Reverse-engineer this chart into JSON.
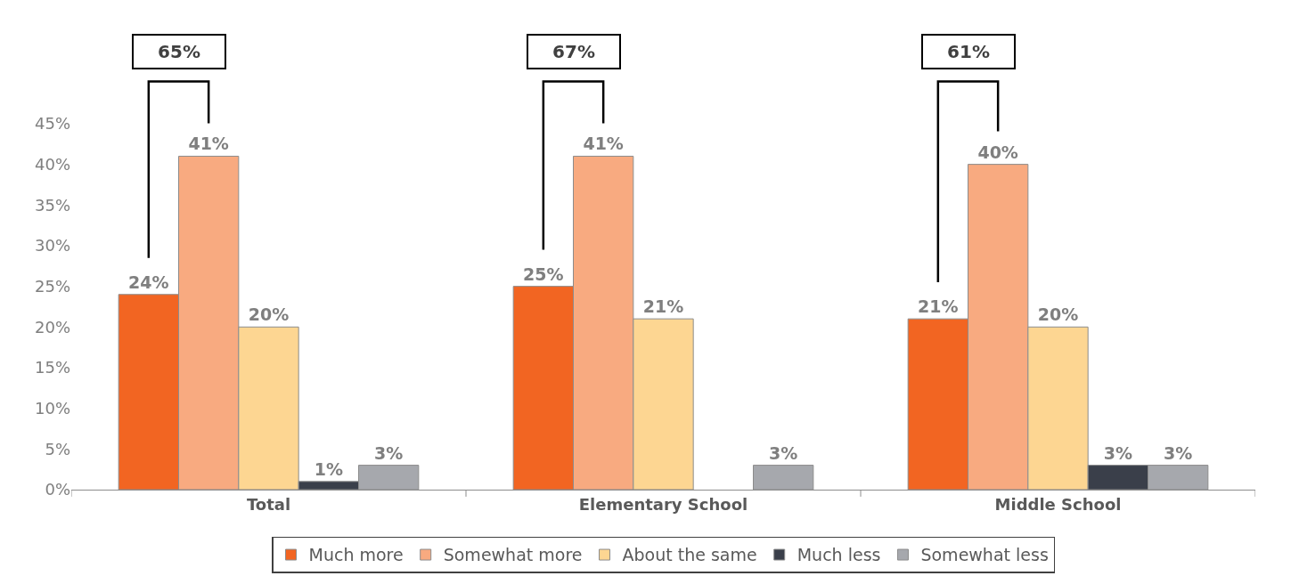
{
  "chart_data": {
    "type": "bar",
    "categories": [
      "Total",
      "Elementary School",
      "Middle School"
    ],
    "series": [
      {
        "name": "Much more",
        "color": "#f26522",
        "values": [
          24,
          25,
          21
        ],
        "value_labels": [
          "24%",
          "25%",
          "21%"
        ]
      },
      {
        "name": "Somewhat more",
        "color": "#f8aa80",
        "values": [
          41,
          41,
          40
        ],
        "value_labels": [
          "41%",
          "41%",
          "40%"
        ]
      },
      {
        "name": "About the same",
        "color": "#fdd692",
        "values": [
          20,
          21,
          20
        ],
        "value_labels": [
          "20%",
          "21%",
          "20%"
        ]
      },
      {
        "name": "Much less",
        "color": "#3a3f4a",
        "values": [
          1,
          null,
          3
        ],
        "value_labels": [
          "1%",
          null,
          "3%"
        ]
      },
      {
        "name": "Somewhat less",
        "color": "#a6a8ad",
        "values": [
          3,
          3,
          3
        ],
        "value_labels": [
          "3%",
          "3%",
          "3%"
        ]
      }
    ],
    "ylim": [
      0,
      45
    ],
    "yticks": [
      {
        "value": 0,
        "label": "0%"
      },
      {
        "value": 5,
        "label": "5%"
      },
      {
        "value": 10,
        "label": "10%"
      },
      {
        "value": 15,
        "label": "15%"
      },
      {
        "value": 20,
        "label": "20%"
      },
      {
        "value": 25,
        "label": "25%"
      },
      {
        "value": 30,
        "label": "30%"
      },
      {
        "value": 35,
        "label": "35%"
      },
      {
        "value": 40,
        "label": "40%"
      },
      {
        "value": 45,
        "label": "45%"
      }
    ],
    "annotations": [
      "65%",
      "67%",
      "61%"
    ],
    "legend": "bottom"
  }
}
